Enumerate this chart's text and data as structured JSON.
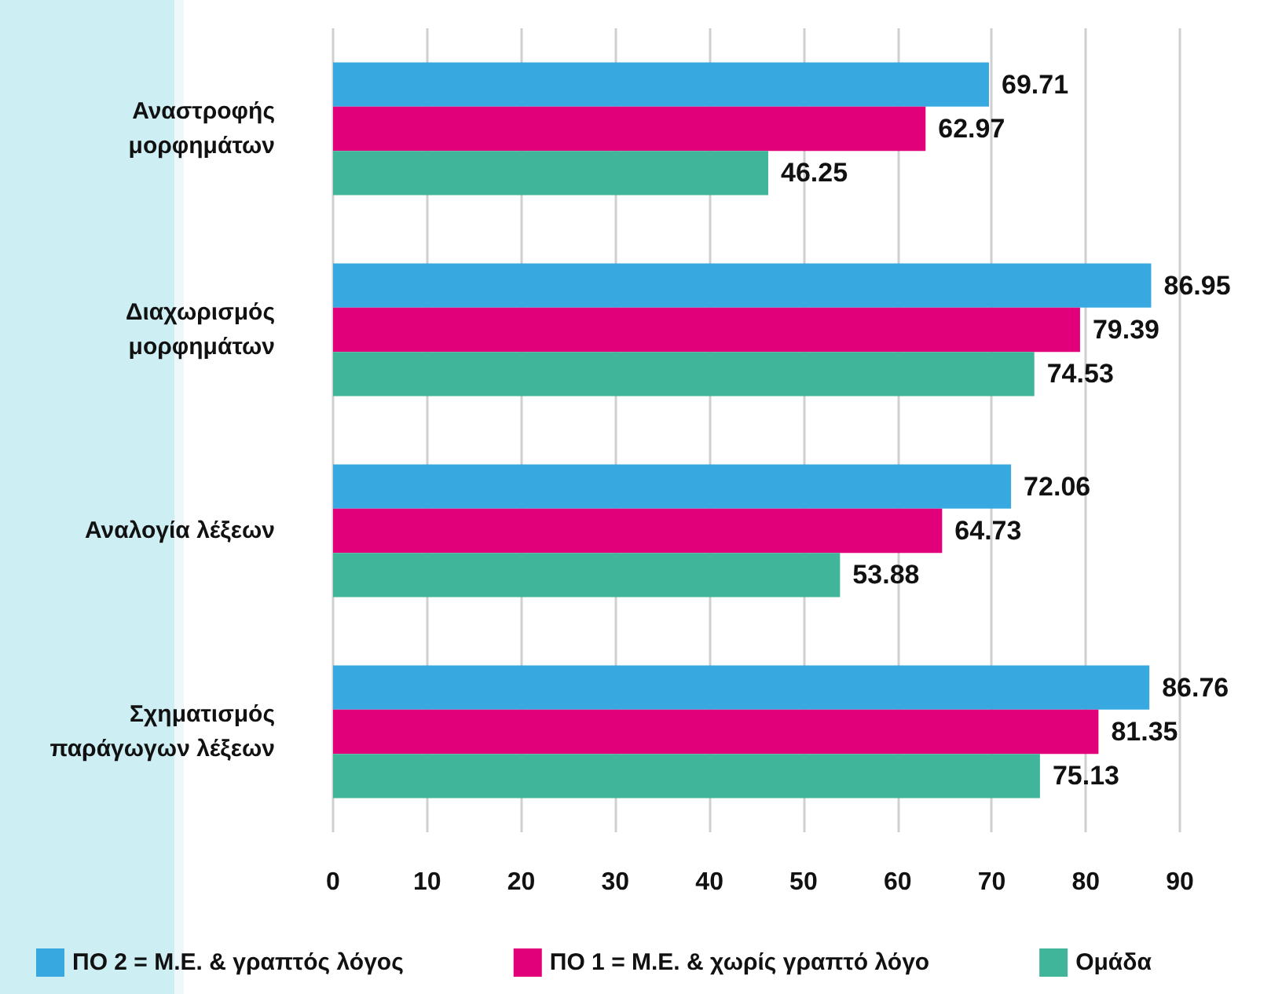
{
  "chart_data": {
    "type": "bar",
    "orientation": "horizontal",
    "categories": [
      "Αναστροφής μορφημάτων",
      "Διαχωρισμός μορφημάτων",
      "Αναλογία λέξεων",
      "Σχηματισμός παράγωγων λέξεων"
    ],
    "series": [
      {
        "name": "ΠΟ 2 = Μ.Ε. & γραπτός λόγος",
        "color": "#38a8e0",
        "values": [
          69.71,
          86.95,
          72.06,
          86.76
        ]
      },
      {
        "name": "ΠΟ 1 = Μ.Ε. & χωρίς γραπτό λόγο",
        "color": "#e2007a",
        "values": [
          62.97,
          79.39,
          64.73,
          81.35
        ]
      },
      {
        "name": "Ομάδα",
        "color": "#40b59a",
        "values": [
          46.25,
          74.53,
          53.88,
          75.13
        ]
      }
    ],
    "xlim": [
      0,
      90
    ],
    "xticks": [
      0,
      10,
      20,
      30,
      40,
      50,
      60,
      70,
      80,
      90
    ],
    "grid": "x",
    "legend": "bottom",
    "data_labels": true
  }
}
